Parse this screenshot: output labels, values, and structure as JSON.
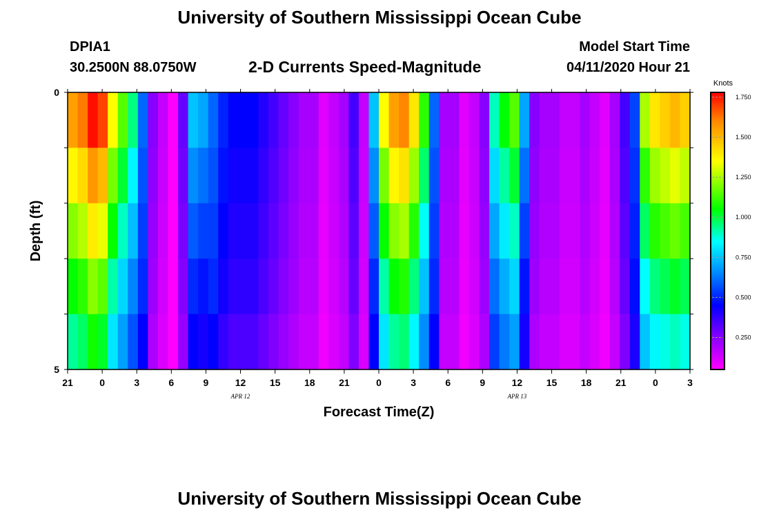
{
  "header": {
    "title": "University of Southern Mississippi Ocean Cube",
    "station_id": "DPIA1",
    "station_coords": "30.2500N 88.0750W",
    "product": "2-D Currents Speed-Magnitude",
    "model_start_label": "Model Start Time",
    "model_start_value": "04/11/2020 Hour 21"
  },
  "footer": {
    "title": "University of Southern Mississippi Ocean Cube"
  },
  "colors": {
    "colormap": [
      "#ff00ff",
      "#8800ff",
      "#0000ff",
      "#0088ff",
      "#00ffff",
      "#00ff00",
      "#ffff00",
      "#ff8800",
      "#ff0000"
    ],
    "colormap_stops": [
      0.05,
      0.25,
      0.45,
      0.65,
      0.85,
      1.05,
      1.35,
      1.6,
      1.8
    ]
  },
  "chart_data": {
    "type": "heatmap",
    "xlabel": "Forecast Time(Z)",
    "ylabel": "Depth (ft)",
    "colorbar_label": "Knots",
    "ylim": [
      0,
      5
    ],
    "y_tick_labels": [
      "0",
      "5"
    ],
    "x_tick_labels": [
      "21",
      "0",
      "3",
      "6",
      "9",
      "12",
      "15",
      "18",
      "21",
      "0",
      "3",
      "6",
      "9",
      "12",
      "15",
      "18",
      "21",
      "0",
      "3"
    ],
    "date_labels": [
      "APR 12",
      "APR 13"
    ],
    "colorbar_ticks": [
      "1.750",
      "1.500",
      "1.250",
      "1.000",
      "0.750",
      "0.500",
      "0.250"
    ],
    "colorbar_tick_values": [
      1.75,
      1.5,
      1.25,
      1.0,
      0.75,
      0.5,
      0.25
    ],
    "colorbar_range": [
      0.05,
      1.78
    ],
    "x_start_hour": 21,
    "x_end_hour": 75,
    "depth_levels": [
      0,
      1,
      2,
      3,
      4,
      5
    ],
    "hourly_profile": [
      1.55,
      1.62,
      1.78,
      1.7,
      1.35,
      1.15,
      0.95,
      0.6,
      0.25,
      0.15,
      0.05,
      0.3,
      0.75,
      0.7,
      0.6,
      0.5,
      0.45,
      0.45,
      0.45,
      0.4,
      0.35,
      0.3,
      0.25,
      0.2,
      0.2,
      0.1,
      0.15,
      0.2,
      0.35,
      0.15,
      0.75,
      1.35,
      1.55,
      1.6,
      1.4,
      1.1,
      0.6,
      0.2,
      0.2,
      0.1,
      0.15,
      0.25,
      0.9,
      1.05,
      1.15,
      0.7,
      0.25,
      0.2,
      0.2,
      0.15,
      0.15,
      0.2,
      0.15,
      0.1,
      0.2,
      0.35,
      0.55,
      1.25,
      1.4,
      1.45,
      1.5,
      1.45
    ],
    "depth_factors": [
      1.0,
      0.88,
      0.78,
      0.68,
      0.6
    ],
    "depth_attenuation": [
      1.0,
      0.95,
      0.9,
      0.85,
      0.75
    ]
  }
}
